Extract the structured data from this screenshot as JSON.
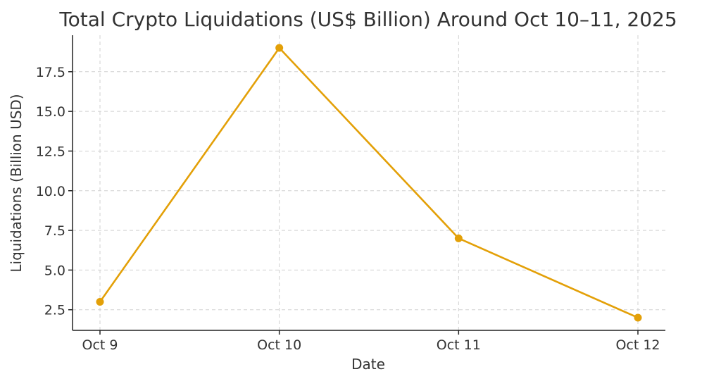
{
  "chart_data": {
    "type": "line",
    "title": "Total Crypto Liquidations (US$ Billion) Around Oct 10–11, 2025",
    "xlabel": "Date",
    "ylabel": "Liquidations (Billion USD)",
    "categories": [
      "Oct 9",
      "Oct 10",
      "Oct 11",
      "Oct 12"
    ],
    "series": [
      {
        "values": [
          3,
          19,
          7,
          2
        ],
        "color": "#E3A008",
        "marker": "circle"
      }
    ],
    "ylim": [
      1.2,
      19.8
    ],
    "yticks": [
      2.5,
      5.0,
      7.5,
      10.0,
      12.5,
      15.0,
      17.5
    ],
    "ytick_labels": [
      "2.5",
      "5.0",
      "7.5",
      "10.0",
      "12.5",
      "15.0",
      "17.5"
    ],
    "grid": true,
    "grid_style": "dashed",
    "legend": "none"
  }
}
